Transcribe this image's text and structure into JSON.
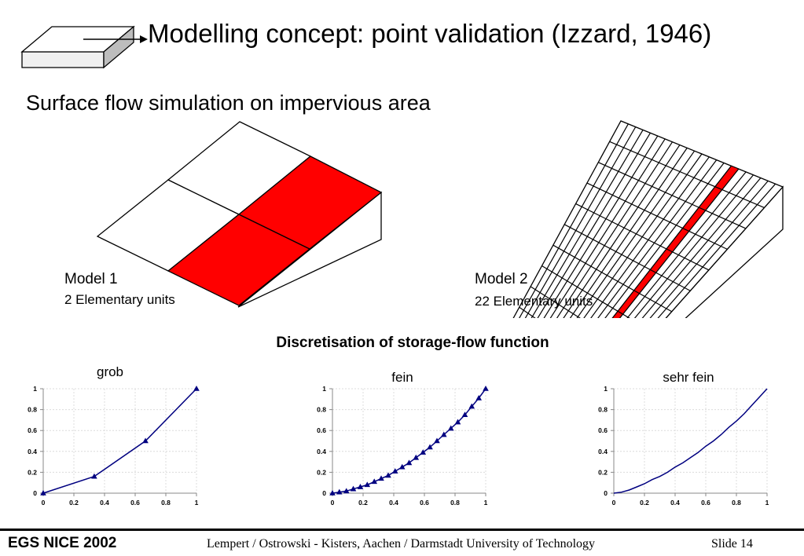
{
  "slide": {
    "title": "Modelling concept: point validation (Izzard, 1946)",
    "subtitle": "Surface flow simulation on impervious area",
    "section_heading": "Discretisation of storage-flow function",
    "colors": {
      "highlight": "#ff0000",
      "series": "#000080"
    }
  },
  "models": [
    {
      "name": "Model 1",
      "units": "2 Elementary units"
    },
    {
      "name": "Model 2",
      "units": "22 Elementary units"
    }
  ],
  "chart_data": [
    {
      "type": "line",
      "title": "grob",
      "marker": "triangle",
      "x": [
        0,
        0.333,
        0.667,
        1
      ],
      "y": [
        0,
        0.16,
        0.5,
        1
      ],
      "xlim": [
        0,
        1
      ],
      "ylim": [
        0,
        1
      ],
      "xticks": [
        "0",
        "0.2",
        "0.4",
        "0.6",
        "0.8",
        "1"
      ],
      "yticks": [
        "0",
        "0.2",
        "0.4",
        "0.6",
        "0.8",
        "1"
      ],
      "grid": true
    },
    {
      "type": "line",
      "title": "fein",
      "marker": "triangle",
      "x": [
        0,
        0.045,
        0.091,
        0.136,
        0.182,
        0.227,
        0.273,
        0.318,
        0.364,
        0.409,
        0.455,
        0.5,
        0.545,
        0.591,
        0.636,
        0.682,
        0.727,
        0.773,
        0.818,
        0.864,
        0.909,
        0.955,
        1
      ],
      "y": [
        0,
        0.01,
        0.02,
        0.04,
        0.06,
        0.08,
        0.11,
        0.14,
        0.17,
        0.21,
        0.25,
        0.29,
        0.34,
        0.39,
        0.44,
        0.5,
        0.56,
        0.62,
        0.68,
        0.75,
        0.83,
        0.91,
        1
      ],
      "xlim": [
        0,
        1
      ],
      "ylim": [
        0,
        1
      ],
      "xticks": [
        "0",
        "0.2",
        "0.4",
        "0.6",
        "0.8",
        "1"
      ],
      "yticks": [
        "0",
        "0.2",
        "0.4",
        "0.6",
        "0.8",
        "1"
      ],
      "grid": true
    },
    {
      "type": "line",
      "title": "sehr fein",
      "marker": "none",
      "x": [
        0,
        0.05,
        0.1,
        0.15,
        0.2,
        0.25,
        0.3,
        0.35,
        0.4,
        0.45,
        0.5,
        0.55,
        0.6,
        0.65,
        0.7,
        0.75,
        0.8,
        0.85,
        0.9,
        0.95,
        1
      ],
      "y": [
        0,
        0.01,
        0.03,
        0.06,
        0.09,
        0.13,
        0.16,
        0.2,
        0.25,
        0.29,
        0.34,
        0.39,
        0.45,
        0.5,
        0.56,
        0.63,
        0.69,
        0.76,
        0.84,
        0.92,
        1
      ],
      "xlim": [
        0,
        1
      ],
      "ylim": [
        0,
        1
      ],
      "xticks": [
        "0",
        "0.2",
        "0.4",
        "0.6",
        "0.8",
        "1"
      ],
      "yticks": [
        "0",
        "0.2",
        "0.4",
        "0.6",
        "0.8",
        "1"
      ],
      "grid": true
    }
  ],
  "footer": {
    "conference": "EGS NICE 2002",
    "authors": "Lempert / Ostrowski  - Kisters, Aachen / Darmstadt University of Technology",
    "slide_number": "Slide  14"
  }
}
